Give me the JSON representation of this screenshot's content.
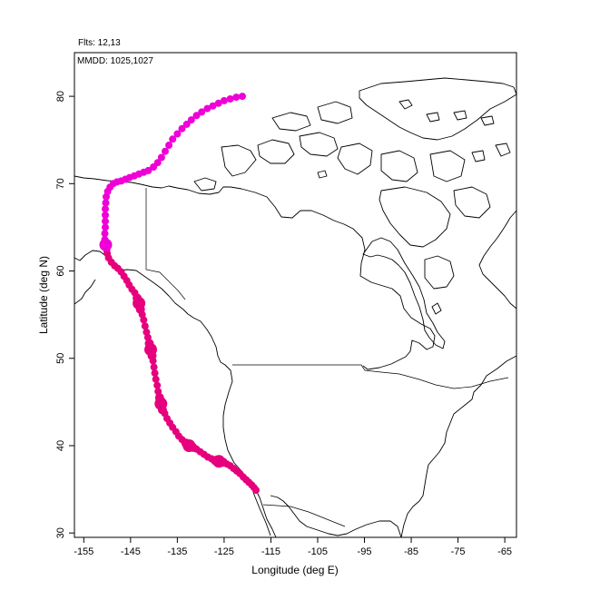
{
  "header": {
    "flights": "Flts: 12,13",
    "dates": "MMDD: 1025,1027"
  },
  "chart_data": {
    "type": "scatter",
    "title": "",
    "xlabel": "Longitude (deg E)",
    "ylabel": "Latitude (deg N)",
    "xlim": [
      -157,
      -62.5
    ],
    "ylim": [
      29.5,
      85
    ],
    "xticks": [
      -155,
      -145,
      -135,
      -125,
      -115,
      -105,
      -95,
      -85,
      -75,
      -65
    ],
    "yticks": [
      30,
      40,
      50,
      60,
      70,
      80
    ],
    "xticklabels": [
      "-155",
      "-145",
      "-135",
      "-125",
      "-115",
      "-105",
      "-95",
      "-85",
      "-75",
      "-65"
    ],
    "yticklabels": [
      "30",
      "40",
      "50",
      "60",
      "70",
      "80"
    ],
    "grid": false,
    "series": [
      {
        "color": "#e6007e",
        "points": [
          [
            -118.2,
            34.9
          ],
          [
            -118.6,
            35.2
          ],
          [
            -119.1,
            35.5
          ],
          [
            -119.7,
            35.8
          ],
          [
            -120.3,
            36.1
          ],
          [
            -120.9,
            36.4
          ],
          [
            -121.6,
            36.8
          ],
          [
            -122.3,
            37.1
          ],
          [
            -123.0,
            37.4
          ],
          [
            -123.7,
            37.7
          ],
          [
            -124.4,
            37.9
          ],
          [
            -125.2,
            38.1
          ],
          [
            -126.1,
            38.2
          ],
          [
            -126.9,
            38.3
          ],
          [
            -127.7,
            38.5
          ],
          [
            -128.5,
            38.7
          ],
          [
            -129.3,
            39.0
          ],
          [
            -130.1,
            39.3
          ],
          [
            -130.9,
            39.6
          ],
          [
            -131.7,
            39.8
          ],
          [
            -132.5,
            40.0
          ],
          [
            -133.2,
            40.3
          ],
          [
            -134.0,
            40.7
          ],
          [
            -134.7,
            41.1
          ],
          [
            -135.3,
            41.6
          ],
          [
            -136.0,
            42.1
          ],
          [
            -136.6,
            42.6
          ],
          [
            -137.2,
            43.1
          ],
          [
            -137.7,
            43.7
          ],
          [
            -138.2,
            44.1
          ],
          [
            -138.5,
            44.8
          ],
          [
            -138.8,
            45.5
          ],
          [
            -139.1,
            46.2
          ],
          [
            -139.3,
            46.9
          ],
          [
            -139.6,
            47.6
          ],
          [
            -139.8,
            48.3
          ],
          [
            -140.0,
            49.0
          ],
          [
            -140.2,
            49.7
          ],
          [
            -140.4,
            50.3
          ],
          [
            -140.7,
            51.0
          ],
          [
            -141.0,
            51.7
          ],
          [
            -141.3,
            52.4
          ],
          [
            -141.6,
            53.0
          ],
          [
            -141.9,
            53.7
          ],
          [
            -142.2,
            54.4
          ],
          [
            -142.5,
            55.0
          ],
          [
            -142.9,
            55.6
          ],
          [
            -143.2,
            56.3
          ],
          [
            -143.6,
            56.9
          ],
          [
            -144.1,
            57.5
          ],
          [
            -144.7,
            57.9
          ],
          [
            -145.3,
            58.4
          ],
          [
            -145.8,
            58.9
          ],
          [
            -146.4,
            59.4
          ],
          [
            -147.0,
            59.9
          ],
          [
            -147.7,
            60.3
          ],
          [
            -148.4,
            60.6
          ],
          [
            -149.1,
            61.0
          ],
          [
            -149.7,
            61.5
          ],
          [
            -150.0,
            62.0
          ],
          [
            -150.1,
            62.4
          ],
          [
            -150.2,
            62.7
          ]
        ],
        "sizes": [
          4,
          4,
          4,
          4,
          4,
          4,
          4,
          4,
          4,
          4,
          4,
          5,
          7,
          5,
          4,
          4,
          4,
          4,
          4,
          5,
          7,
          5,
          4,
          4,
          4,
          4,
          4,
          4,
          4,
          5,
          7,
          5,
          4,
          4,
          4,
          4,
          4,
          4,
          5,
          7,
          5,
          4,
          4,
          4,
          4,
          4,
          5,
          7,
          5,
          4,
          4,
          4,
          4,
          4,
          4,
          4,
          4,
          4,
          4,
          4,
          4,
          4
        ]
      },
      {
        "color": "#ee00d6",
        "points": [
          [
            -150.3,
            63.0
          ],
          [
            -150.5,
            63.6
          ],
          [
            -150.5,
            64.3
          ],
          [
            -150.4,
            65.0
          ],
          [
            -150.4,
            65.7
          ],
          [
            -150.4,
            66.4
          ],
          [
            -150.4,
            67.1
          ],
          [
            -150.3,
            67.8
          ],
          [
            -150.2,
            68.5
          ],
          [
            -149.9,
            69.1
          ],
          [
            -149.4,
            69.6
          ],
          [
            -148.7,
            70.0
          ],
          [
            -147.9,
            70.2
          ],
          [
            -147.0,
            70.3
          ],
          [
            -146.1,
            70.5
          ],
          [
            -145.2,
            70.7
          ],
          [
            -144.2,
            70.9
          ],
          [
            -143.2,
            71.1
          ],
          [
            -142.2,
            71.3
          ],
          [
            -141.2,
            71.5
          ],
          [
            -140.1,
            71.9
          ],
          [
            -139.2,
            72.4
          ],
          [
            -138.4,
            73.0
          ],
          [
            -137.6,
            73.7
          ],
          [
            -136.8,
            74.4
          ],
          [
            -136.0,
            75.1
          ],
          [
            -135.0,
            75.7
          ],
          [
            -134.0,
            76.3
          ],
          [
            -133.0,
            76.8
          ],
          [
            -132.0,
            77.3
          ],
          [
            -130.9,
            77.8
          ],
          [
            -129.8,
            78.2
          ],
          [
            -128.6,
            78.6
          ],
          [
            -127.4,
            78.9
          ],
          [
            -126.2,
            79.2
          ],
          [
            -125.0,
            79.5
          ],
          [
            -123.7,
            79.7
          ],
          [
            -122.4,
            79.9
          ],
          [
            -121.1,
            80.0
          ]
        ],
        "sizes": [
          7,
          4,
          4,
          4,
          4,
          4,
          4,
          4,
          4,
          4,
          4,
          4,
          4,
          4,
          4,
          4,
          4,
          4,
          4,
          4,
          4,
          4,
          4,
          4,
          4,
          4,
          4,
          4,
          4,
          4,
          4,
          4,
          4,
          4,
          4,
          4,
          4,
          4,
          4
        ]
      }
    ]
  }
}
